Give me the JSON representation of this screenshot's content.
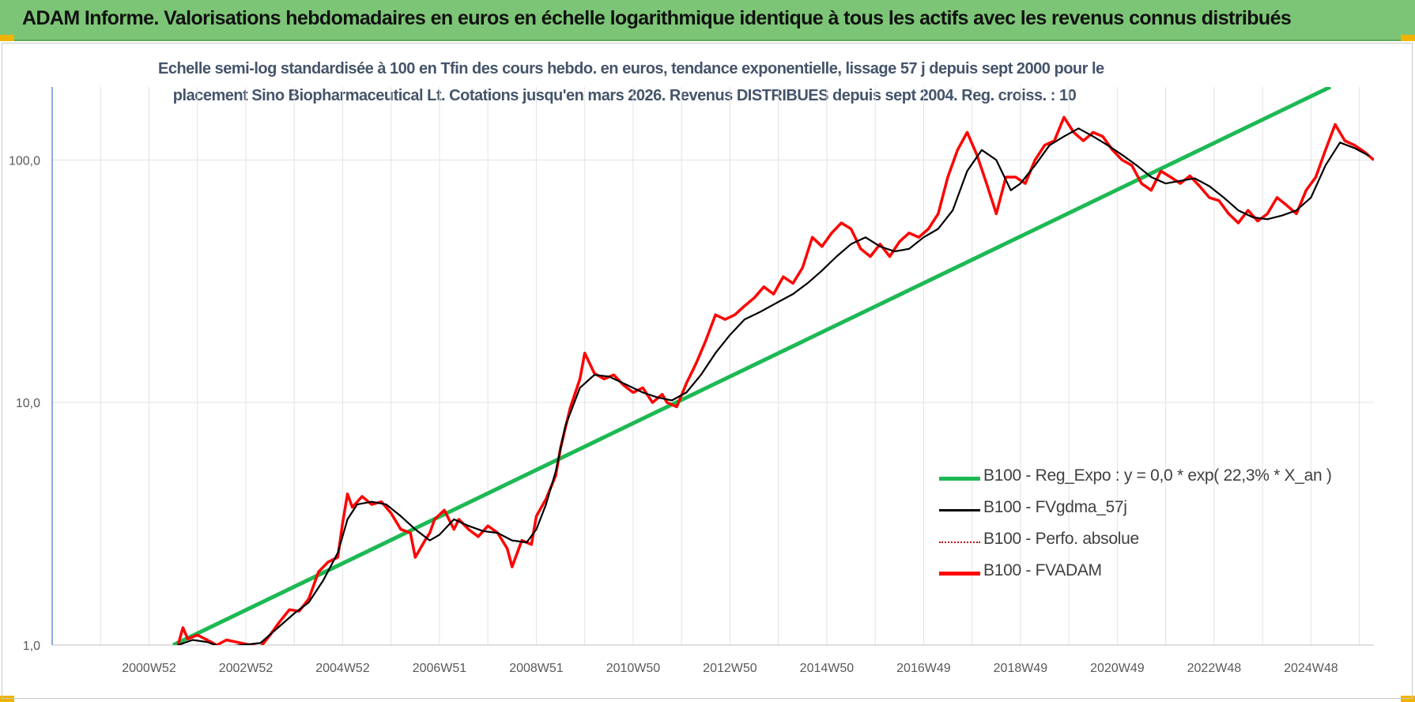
{
  "header": {
    "title": "ADAM Informe. Valorisations hebdomadaires en euros en échelle logarithmique identique à tous les actifs avec les revenus connus distribués"
  },
  "colors": {
    "banner": "#7cc576",
    "regression": "#1db954",
    "smoothed": "#000000",
    "absolute": "#c00000",
    "fvadam": "#ff0000",
    "gridline": "#e3e3e3"
  },
  "chart_data": {
    "type": "line",
    "title_line1": "Echelle semi-log standardisée à 100 en Tfin des cours hebdo. en euros, tendance exponentielle, lissage 57 j depuis sept 2000 pour le",
    "title_line2": "placement Sino Biopharmaceutical Lt. Cotations jusqu'en mars 2026. Revenus DISTRIBUES depuis sept 2004. Reg. croiss. : 10",
    "y_scale": "log",
    "ylim": [
      1,
      200
    ],
    "y_ticks": [
      "1,0",
      "10,0",
      "100,0"
    ],
    "y_tick_values": [
      1,
      10,
      100
    ],
    "xlim": [
      1999.0,
      2026.3
    ],
    "x_ticks": [
      "2000W52",
      "2002W52",
      "2004W52",
      "2006W51",
      "2008W51",
      "2010W50",
      "2012W50",
      "2014W50",
      "2016W49",
      "2018W49",
      "2020W49",
      "2022W48",
      "2024W48"
    ],
    "x_tick_values": [
      2001.0,
      2003.0,
      2005.0,
      2007.0,
      2009.0,
      2011.0,
      2013.0,
      2015.0,
      2017.0,
      2019.0,
      2021.0,
      2023.0,
      2025.0
    ],
    "grid": true,
    "legend_position": "bottom-right",
    "series": [
      {
        "name": "B100 - Reg_Expo : y = 0,0 * exp( 22,3% *  X_an )",
        "style": "thick-green",
        "x": [
          2001.5,
          2025.4
        ],
        "y": [
          1.0,
          200.0
        ]
      },
      {
        "name": "B100 - FVgdma_57j",
        "style": "black",
        "x": [
          2001.6,
          2001.9,
          2002.2,
          2002.5,
          2003.3,
          2003.6,
          2004.0,
          2004.3,
          2004.6,
          2004.9,
          2005.1,
          2005.3,
          2005.6,
          2005.9,
          2006.2,
          2006.5,
          2006.8,
          2007.0,
          2007.3,
          2007.6,
          2007.9,
          2008.2,
          2008.5,
          2008.8,
          2009.0,
          2009.2,
          2009.4,
          2009.6,
          2009.9,
          2010.2,
          2010.5,
          2010.8,
          2011.2,
          2011.5,
          2011.8,
          2012.1,
          2012.4,
          2012.7,
          2013.0,
          2013.3,
          2013.6,
          2014.0,
          2014.3,
          2014.6,
          2014.9,
          2015.2,
          2015.5,
          2015.8,
          2016.1,
          2016.4,
          2016.7,
          2017.0,
          2017.3,
          2017.6,
          2017.9,
          2018.2,
          2018.5,
          2018.8,
          2019.0,
          2019.3,
          2019.6,
          2019.9,
          2020.2,
          2020.5,
          2020.8,
          2021.1,
          2021.4,
          2021.7,
          2022.0,
          2022.3,
          2022.6,
          2022.9,
          2023.2,
          2023.5,
          2023.8,
          2024.1,
          2024.4,
          2024.7,
          2025.0,
          2025.3,
          2025.6,
          2025.9,
          2026.2
        ],
        "y": [
          1.0,
          1.05,
          1.03,
          0.98,
          1.02,
          1.15,
          1.35,
          1.5,
          1.85,
          2.4,
          3.3,
          3.8,
          3.9,
          3.8,
          3.4,
          3.0,
          2.7,
          2.85,
          3.3,
          3.1,
          2.95,
          2.9,
          2.7,
          2.65,
          3.0,
          3.8,
          5.2,
          8.0,
          11.5,
          13.0,
          12.8,
          12.0,
          11.0,
          10.5,
          10.2,
          11.0,
          13.0,
          16.0,
          19.0,
          22.0,
          23.5,
          26.0,
          28.0,
          31.0,
          35.0,
          40.0,
          45.0,
          48.0,
          44.0,
          42.0,
          43.0,
          48.0,
          52.0,
          62.0,
          90.0,
          110.0,
          100.0,
          75.0,
          80.0,
          95.0,
          115.0,
          125.0,
          135.0,
          125.0,
          115.0,
          105.0,
          95.0,
          85.0,
          80.0,
          82.0,
          84.0,
          78.0,
          70.0,
          62.0,
          58.0,
          57.0,
          59.0,
          62.0,
          70.0,
          95.0,
          118.0,
          112.0,
          104.0
        ]
      },
      {
        "name": "B100 - Perfo. absolue",
        "style": "dotted-darkred",
        "x": [],
        "y": []
      },
      {
        "name": "B100 - FVADAM",
        "style": "thick-red",
        "x": [
          2001.6,
          2001.7,
          2001.8,
          2002.0,
          2002.2,
          2002.4,
          2002.6,
          2003.3,
          2003.5,
          2003.7,
          2003.9,
          2004.1,
          2004.3,
          2004.5,
          2004.7,
          2004.9,
          2005.0,
          2005.1,
          2005.2,
          2005.4,
          2005.6,
          2005.8,
          2006.0,
          2006.2,
          2006.4,
          2006.5,
          2006.7,
          2006.8,
          2006.9,
          2007.1,
          2007.3,
          2007.4,
          2007.6,
          2007.8,
          2008.0,
          2008.2,
          2008.4,
          2008.5,
          2008.7,
          2008.9,
          2009.0,
          2009.2,
          2009.4,
          2009.5,
          2009.7,
          2009.9,
          2010.0,
          2010.2,
          2010.4,
          2010.6,
          2010.8,
          2011.0,
          2011.2,
          2011.4,
          2011.6,
          2011.7,
          2011.9,
          2012.1,
          2012.3,
          2012.5,
          2012.7,
          2012.9,
          2013.1,
          2013.3,
          2013.5,
          2013.7,
          2013.9,
          2014.1,
          2014.3,
          2014.5,
          2014.7,
          2014.9,
          2015.1,
          2015.3,
          2015.5,
          2015.7,
          2015.9,
          2016.1,
          2016.3,
          2016.5,
          2016.7,
          2016.9,
          2017.1,
          2017.3,
          2017.5,
          2017.7,
          2017.9,
          2018.1,
          2018.3,
          2018.5,
          2018.7,
          2018.9,
          2019.1,
          2019.3,
          2019.5,
          2019.7,
          2019.9,
          2020.1,
          2020.3,
          2020.5,
          2020.7,
          2020.9,
          2021.1,
          2021.3,
          2021.5,
          2021.7,
          2021.9,
          2022.1,
          2022.3,
          2022.5,
          2022.7,
          2022.9,
          2023.1,
          2023.3,
          2023.5,
          2023.7,
          2023.9,
          2024.1,
          2024.3,
          2024.5,
          2024.7,
          2024.9,
          2025.1,
          2025.3,
          2025.5,
          2025.7,
          2025.9,
          2026.1,
          2026.3
        ],
        "y": [
          1.0,
          1.18,
          1.06,
          1.1,
          1.05,
          1.0,
          1.05,
          0.98,
          1.1,
          1.25,
          1.4,
          1.38,
          1.55,
          2.0,
          2.2,
          2.3,
          3.2,
          4.2,
          3.7,
          4.1,
          3.8,
          3.9,
          3.5,
          3.0,
          2.9,
          2.3,
          2.7,
          2.9,
          3.3,
          3.6,
          3.0,
          3.3,
          3.0,
          2.8,
          3.1,
          2.9,
          2.5,
          2.1,
          2.7,
          2.6,
          3.4,
          4.0,
          5.0,
          6.5,
          9.5,
          12.5,
          16.0,
          13.2,
          12.5,
          13.0,
          11.8,
          11.0,
          11.5,
          10.0,
          10.8,
          10.0,
          9.6,
          12.0,
          14.5,
          18.0,
          23.0,
          22.0,
          23.0,
          25.0,
          27.0,
          30.0,
          28.0,
          33.0,
          31.0,
          36.0,
          48.0,
          44.0,
          50.0,
          55.0,
          52.0,
          43.0,
          40.0,
          45.0,
          40.0,
          46.0,
          50.0,
          48.0,
          52.0,
          60.0,
          85.0,
          110.0,
          130.0,
          105.0,
          80.0,
          60.0,
          85.0,
          85.0,
          80.0,
          100.0,
          115.0,
          120.0,
          150.0,
          130.0,
          120.0,
          130.0,
          125.0,
          110.0,
          100.0,
          95.0,
          80.0,
          75.0,
          90.0,
          85.0,
          80.0,
          86.0,
          78.0,
          70.0,
          68.0,
          60.0,
          55.0,
          62.0,
          56.0,
          60.0,
          70.0,
          65.0,
          60.0,
          75.0,
          85.0,
          110.0,
          140.0,
          120.0,
          115.0,
          108.0,
          100.0
        ]
      }
    ]
  }
}
